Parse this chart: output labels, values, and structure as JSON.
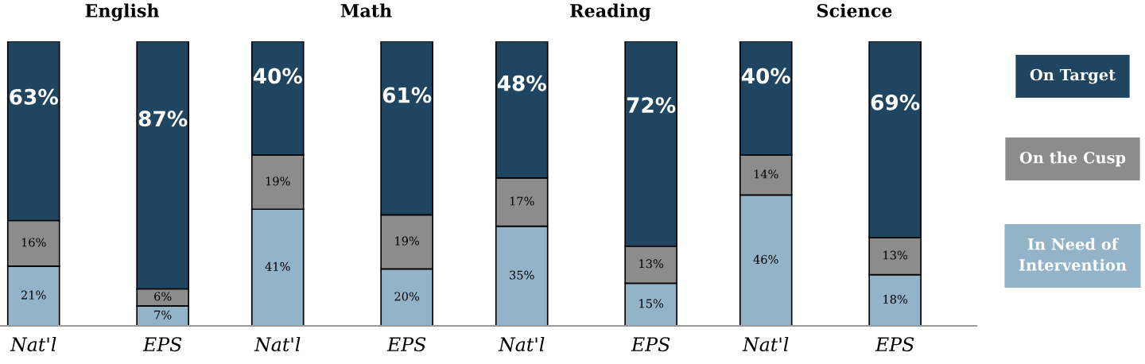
{
  "chart_data": [
    {
      "type": "bar",
      "title": "English",
      "categories": [
        "Nat'l",
        "EPS"
      ],
      "stacked": true,
      "ylim": [
        0,
        100
      ],
      "tick_labels": "x",
      "grid": false,
      "series": [
        {
          "color": "#93b3c8",
          "values": [
            21,
            7
          ],
          "value_labels": [
            "21%",
            "7%"
          ]
        },
        {
          "color": "#8c8c8c",
          "values": [
            16,
            6
          ],
          "value_labels": [
            "16%",
            "6%"
          ]
        },
        {
          "color": "#1f4560",
          "values": [
            63,
            87
          ],
          "value_labels": [
            "63%",
            "87%"
          ]
        }
      ]
    },
    {
      "type": "bar",
      "title": "Math",
      "categories": [
        "Nat'l",
        "EPS"
      ],
      "stacked": true,
      "ylim": [
        0,
        100
      ],
      "tick_labels": "x",
      "grid": false,
      "series": [
        {
          "color": "#93b3c8",
          "values": [
            41,
            20
          ],
          "value_labels": [
            "41%",
            "20%"
          ]
        },
        {
          "color": "#8c8c8c",
          "values": [
            19,
            19
          ],
          "value_labels": [
            "19%",
            "19%"
          ]
        },
        {
          "color": "#1f4560",
          "values": [
            40,
            61
          ],
          "value_labels": [
            "40%",
            "61%"
          ]
        }
      ]
    },
    {
      "type": "bar",
      "title": "Reading",
      "categories": [
        "Nat'l",
        "EPS"
      ],
      "stacked": true,
      "ylim": [
        0,
        100
      ],
      "tick_labels": "x",
      "grid": false,
      "series": [
        {
          "color": "#93b3c8",
          "values": [
            35,
            15
          ],
          "value_labels": [
            "35%",
            "15%"
          ]
        },
        {
          "color": "#8c8c8c",
          "values": [
            17,
            13
          ],
          "value_labels": [
            "17%",
            "13%"
          ]
        },
        {
          "color": "#1f4560",
          "values": [
            48,
            72
          ],
          "value_labels": [
            "48%",
            "72%"
          ]
        }
      ]
    },
    {
      "type": "bar",
      "title": "Science",
      "categories": [
        "Nat'l",
        "EPS"
      ],
      "stacked": true,
      "ylim": [
        0,
        100
      ],
      "tick_labels": "x",
      "grid": false,
      "series": [
        {
          "name": "In Need of Intervention",
          "color": "#93b3c8",
          "values": [
            46,
            18
          ],
          "value_labels": [
            "46%",
            "18%"
          ]
        },
        {
          "name": "On the Cusp",
          "color": "#8c8c8c",
          "values": [
            14,
            13
          ],
          "value_labels": [
            "14%",
            "13%"
          ]
        },
        {
          "name": "On Target",
          "color": "#1f4560",
          "values": [
            40,
            69
          ],
          "value_labels": [
            "40%",
            "69%"
          ]
        }
      ]
    }
  ]
}
